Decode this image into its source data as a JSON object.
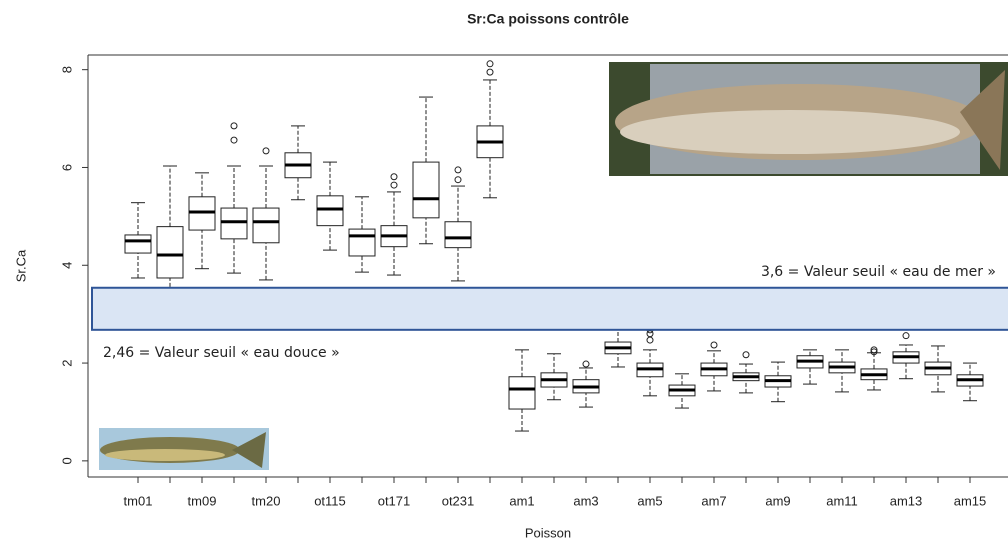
{
  "chart_data": {
    "type": "box",
    "title": "Sr:Ca poissons contrôle",
    "x_label": "Poisson",
    "y_label": "Sr.Ca",
    "categories": [
      "tm01",
      null,
      "tm09",
      null,
      "tm20",
      null,
      "ot115",
      null,
      "ot171",
      null,
      "ot231",
      null,
      "am1",
      null,
      "am3",
      null,
      "am5",
      null,
      "am7",
      null,
      "am9",
      null,
      "am11",
      null,
      "am13",
      null,
      "am15"
    ],
    "boxes": [
      {
        "low": 3.74,
        "q1": 4.25,
        "median": 4.5,
        "q3": 4.62,
        "high": 5.28,
        "outliers": []
      },
      {
        "low": 3.19,
        "q1": 3.74,
        "median": 4.21,
        "q3": 4.79,
        "high": 6.03,
        "outliers": []
      },
      {
        "low": 3.93,
        "q1": 4.72,
        "median": 5.09,
        "q3": 5.4,
        "high": 5.89,
        "outliers": []
      },
      {
        "low": 3.84,
        "q1": 4.54,
        "median": 4.89,
        "q3": 5.17,
        "high": 6.03,
        "outliers": [
          6.85,
          6.56
        ]
      },
      {
        "low": 3.7,
        "q1": 4.46,
        "median": 4.89,
        "q3": 5.17,
        "high": 6.03,
        "outliers": [
          6.34
        ]
      },
      {
        "low": 5.34,
        "q1": 5.79,
        "median": 6.05,
        "q3": 6.3,
        "high": 6.85,
        "outliers": []
      },
      {
        "low": 4.31,
        "q1": 4.81,
        "median": 5.15,
        "q3": 5.42,
        "high": 6.11,
        "outliers": []
      },
      {
        "low": 3.86,
        "q1": 4.19,
        "median": 4.6,
        "q3": 4.74,
        "high": 5.4,
        "outliers": []
      },
      {
        "low": 3.8,
        "q1": 4.38,
        "median": 4.6,
        "q3": 4.81,
        "high": 5.5,
        "outliers": [
          5.81,
          5.64
        ]
      },
      {
        "low": 4.44,
        "q1": 4.97,
        "median": 5.36,
        "q3": 6.11,
        "high": 7.44,
        "outliers": []
      },
      {
        "low": 3.68,
        "q1": 4.36,
        "median": 4.56,
        "q3": 4.89,
        "high": 5.62,
        "outliers": [
          5.95,
          5.75
        ]
      },
      {
        "low": 5.38,
        "q1": 6.2,
        "median": 6.52,
        "q3": 6.85,
        "high": 7.79,
        "outliers": [
          8.12,
          7.95
        ]
      },
      {
        "low": 0.61,
        "q1": 1.06,
        "median": 1.47,
        "q3": 1.72,
        "high": 2.27,
        "outliers": []
      },
      {
        "low": 1.25,
        "q1": 1.51,
        "median": 1.66,
        "q3": 1.8,
        "high": 2.19,
        "outliers": []
      },
      {
        "low": 1.1,
        "q1": 1.39,
        "median": 1.51,
        "q3": 1.66,
        "high": 1.9,
        "outliers": [
          1.98
        ]
      },
      {
        "low": 1.92,
        "q1": 2.19,
        "median": 2.31,
        "q3": 2.43,
        "high": 2.72,
        "outliers": []
      },
      {
        "low": 1.33,
        "q1": 1.72,
        "median": 1.88,
        "q3": 2.0,
        "high": 2.27,
        "outliers": [
          2.68,
          2.6,
          2.47
        ]
      },
      {
        "low": 1.08,
        "q1": 1.33,
        "median": 1.45,
        "q3": 1.55,
        "high": 1.78,
        "outliers": []
      },
      {
        "low": 1.43,
        "q1": 1.74,
        "median": 1.88,
        "q3": 2.0,
        "high": 2.25,
        "outliers": [
          2.37
        ]
      },
      {
        "low": 1.39,
        "q1": 1.64,
        "median": 1.72,
        "q3": 1.8,
        "high": 1.98,
        "outliers": [
          2.17
        ]
      },
      {
        "low": 1.21,
        "q1": 1.51,
        "median": 1.64,
        "q3": 1.74,
        "high": 2.02,
        "outliers": []
      },
      {
        "low": 1.57,
        "q1": 1.9,
        "median": 2.04,
        "q3": 2.15,
        "high": 2.27,
        "outliers": []
      },
      {
        "low": 1.41,
        "q1": 1.8,
        "median": 1.92,
        "q3": 2.02,
        "high": 2.27,
        "outliers": []
      },
      {
        "low": 1.45,
        "q1": 1.66,
        "median": 1.76,
        "q3": 1.88,
        "high": 2.21,
        "outliers": [
          2.27,
          2.23
        ]
      },
      {
        "low": 1.68,
        "q1": 2.0,
        "median": 2.13,
        "q3": 2.23,
        "high": 2.37,
        "outliers": [
          2.56
        ]
      },
      {
        "low": 1.41,
        "q1": 1.76,
        "median": 1.9,
        "q3": 2.02,
        "high": 2.35,
        "outliers": []
      },
      {
        "low": 1.23,
        "q1": 1.53,
        "median": 1.66,
        "q3": 1.76,
        "high": 2.0,
        "outliers": []
      }
    ],
    "band": {
      "ymin": 2.68,
      "ymax": 3.54,
      "color": "#dae5f4",
      "edge": "#2f5597"
    },
    "annotations": [
      "3,6 = Valeur seuil « eau de mer »",
      "2,46 = Valeur seuil « eau douce »"
    ],
    "ylim": [
      -0.33,
      8.3
    ],
    "yticks": [
      0,
      2,
      4,
      6,
      8
    ]
  }
}
